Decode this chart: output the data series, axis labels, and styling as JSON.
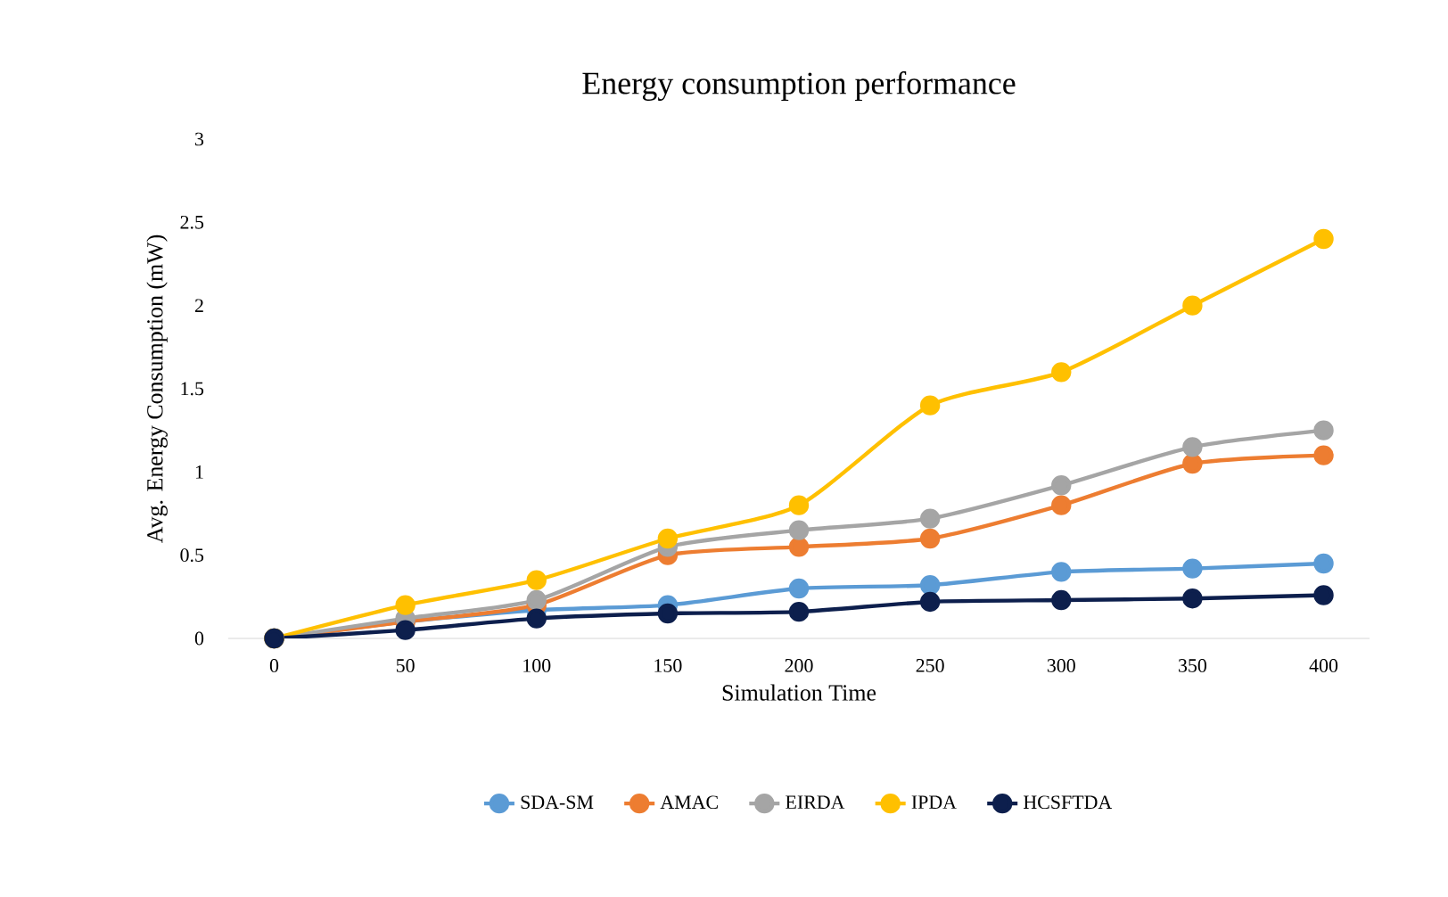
{
  "chart_data": {
    "type": "line",
    "title": "Energy consumption performance",
    "xlabel": "Simulation Time",
    "ylabel": "Avg. Energy Consumption (mW)",
    "categories": [
      "0",
      "50",
      "100",
      "150",
      "200",
      "250",
      "300",
      "350",
      "400"
    ],
    "series": [
      {
        "name": "SDA-SM",
        "color": "#5b9bd5",
        "values": [
          0,
          0.1,
          0.17,
          0.2,
          0.3,
          0.32,
          0.4,
          0.42,
          0.45
        ]
      },
      {
        "name": "AMAC",
        "color": "#ed7d31",
        "values": [
          0,
          0.1,
          0.2,
          0.5,
          0.55,
          0.6,
          0.8,
          1.05,
          1.1
        ]
      },
      {
        "name": "EIRDA",
        "color": "#a5a5a5",
        "values": [
          0,
          0.12,
          0.23,
          0.55,
          0.65,
          0.72,
          0.92,
          1.15,
          1.25
        ]
      },
      {
        "name": "IPDA",
        "color": "#ffc000",
        "values": [
          0,
          0.2,
          0.35,
          0.6,
          0.8,
          1.4,
          1.6,
          2.0,
          2.4
        ]
      },
      {
        "name": "HCSFTDA",
        "color": "#0d1f4d",
        "values": [
          0,
          0.05,
          0.12,
          0.15,
          0.16,
          0.22,
          0.23,
          0.24,
          0.26
        ]
      }
    ],
    "ylim": [
      0,
      3
    ],
    "yticks": [
      0,
      0.5,
      1,
      1.5,
      2,
      2.5,
      3
    ],
    "grid": false,
    "legend": "bottom",
    "marker": "circle",
    "line_style": "solid"
  }
}
